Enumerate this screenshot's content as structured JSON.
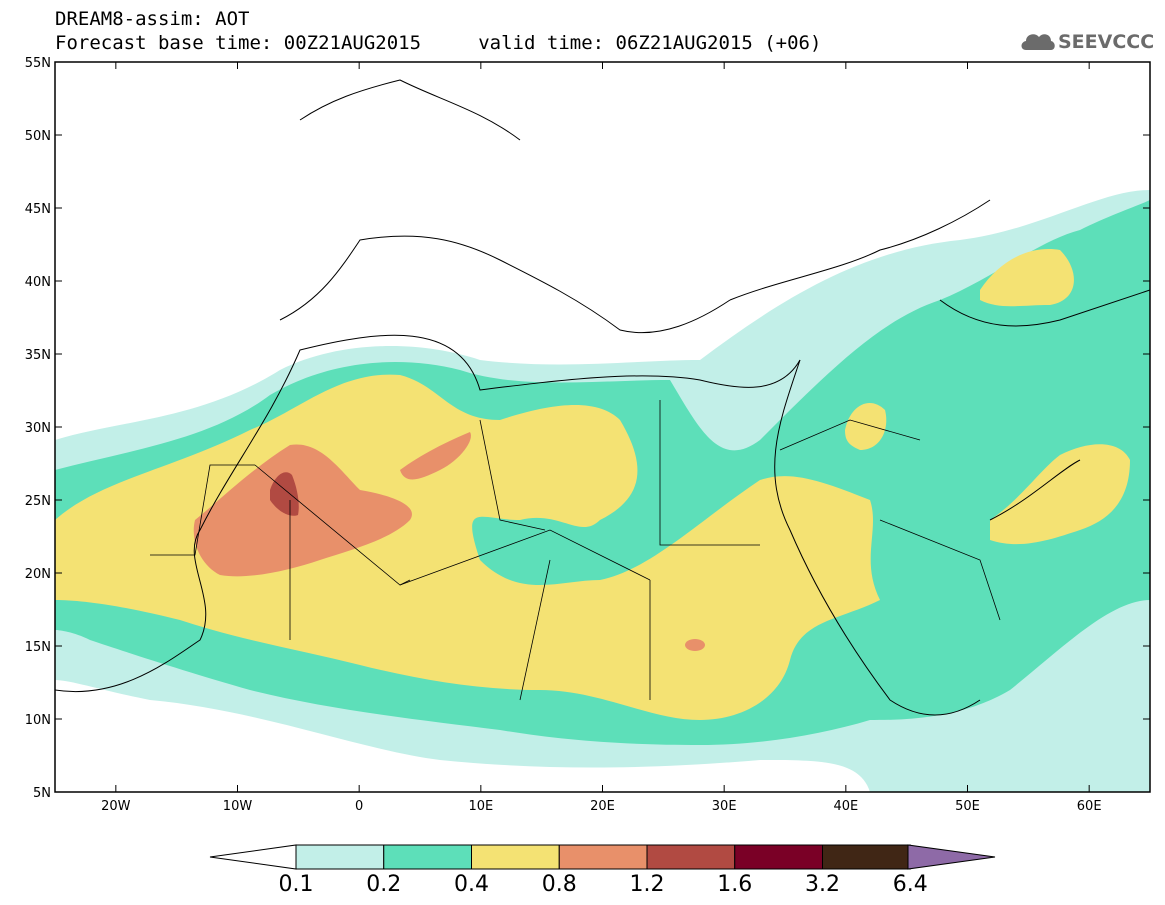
{
  "header": {
    "title_line1": "DREAM8-assim: AOT",
    "title_line2": "Forecast base time: 00Z21AUG2015     valid time: 06Z21AUG2015 (+06)",
    "logo_text": "SEEVCCC"
  },
  "map": {
    "lat_labels": [
      "55N",
      "50N",
      "45N",
      "40N",
      "35N",
      "30N",
      "25N",
      "20N",
      "15N",
      "10N",
      "5N"
    ],
    "lon_labels": [
      "20W",
      "10W",
      "0",
      "10E",
      "20E",
      "30E",
      "40E",
      "50E",
      "60E"
    ],
    "extent": {
      "lon_min": -25,
      "lon_max": 65,
      "lat_min": 5,
      "lat_max": 55
    }
  },
  "colorbar": {
    "labels": [
      "0.1",
      "0.2",
      "0.4",
      "0.8",
      "1.2",
      "1.6",
      "3.2",
      "6.4"
    ],
    "colors": [
      "#ffffff",
      "#c2efe8",
      "#5ddfb9",
      "#f4e273",
      "#e8906a",
      "#b14a42",
      "#7a0026",
      "#402615",
      "#8e6aa7"
    ]
  }
}
